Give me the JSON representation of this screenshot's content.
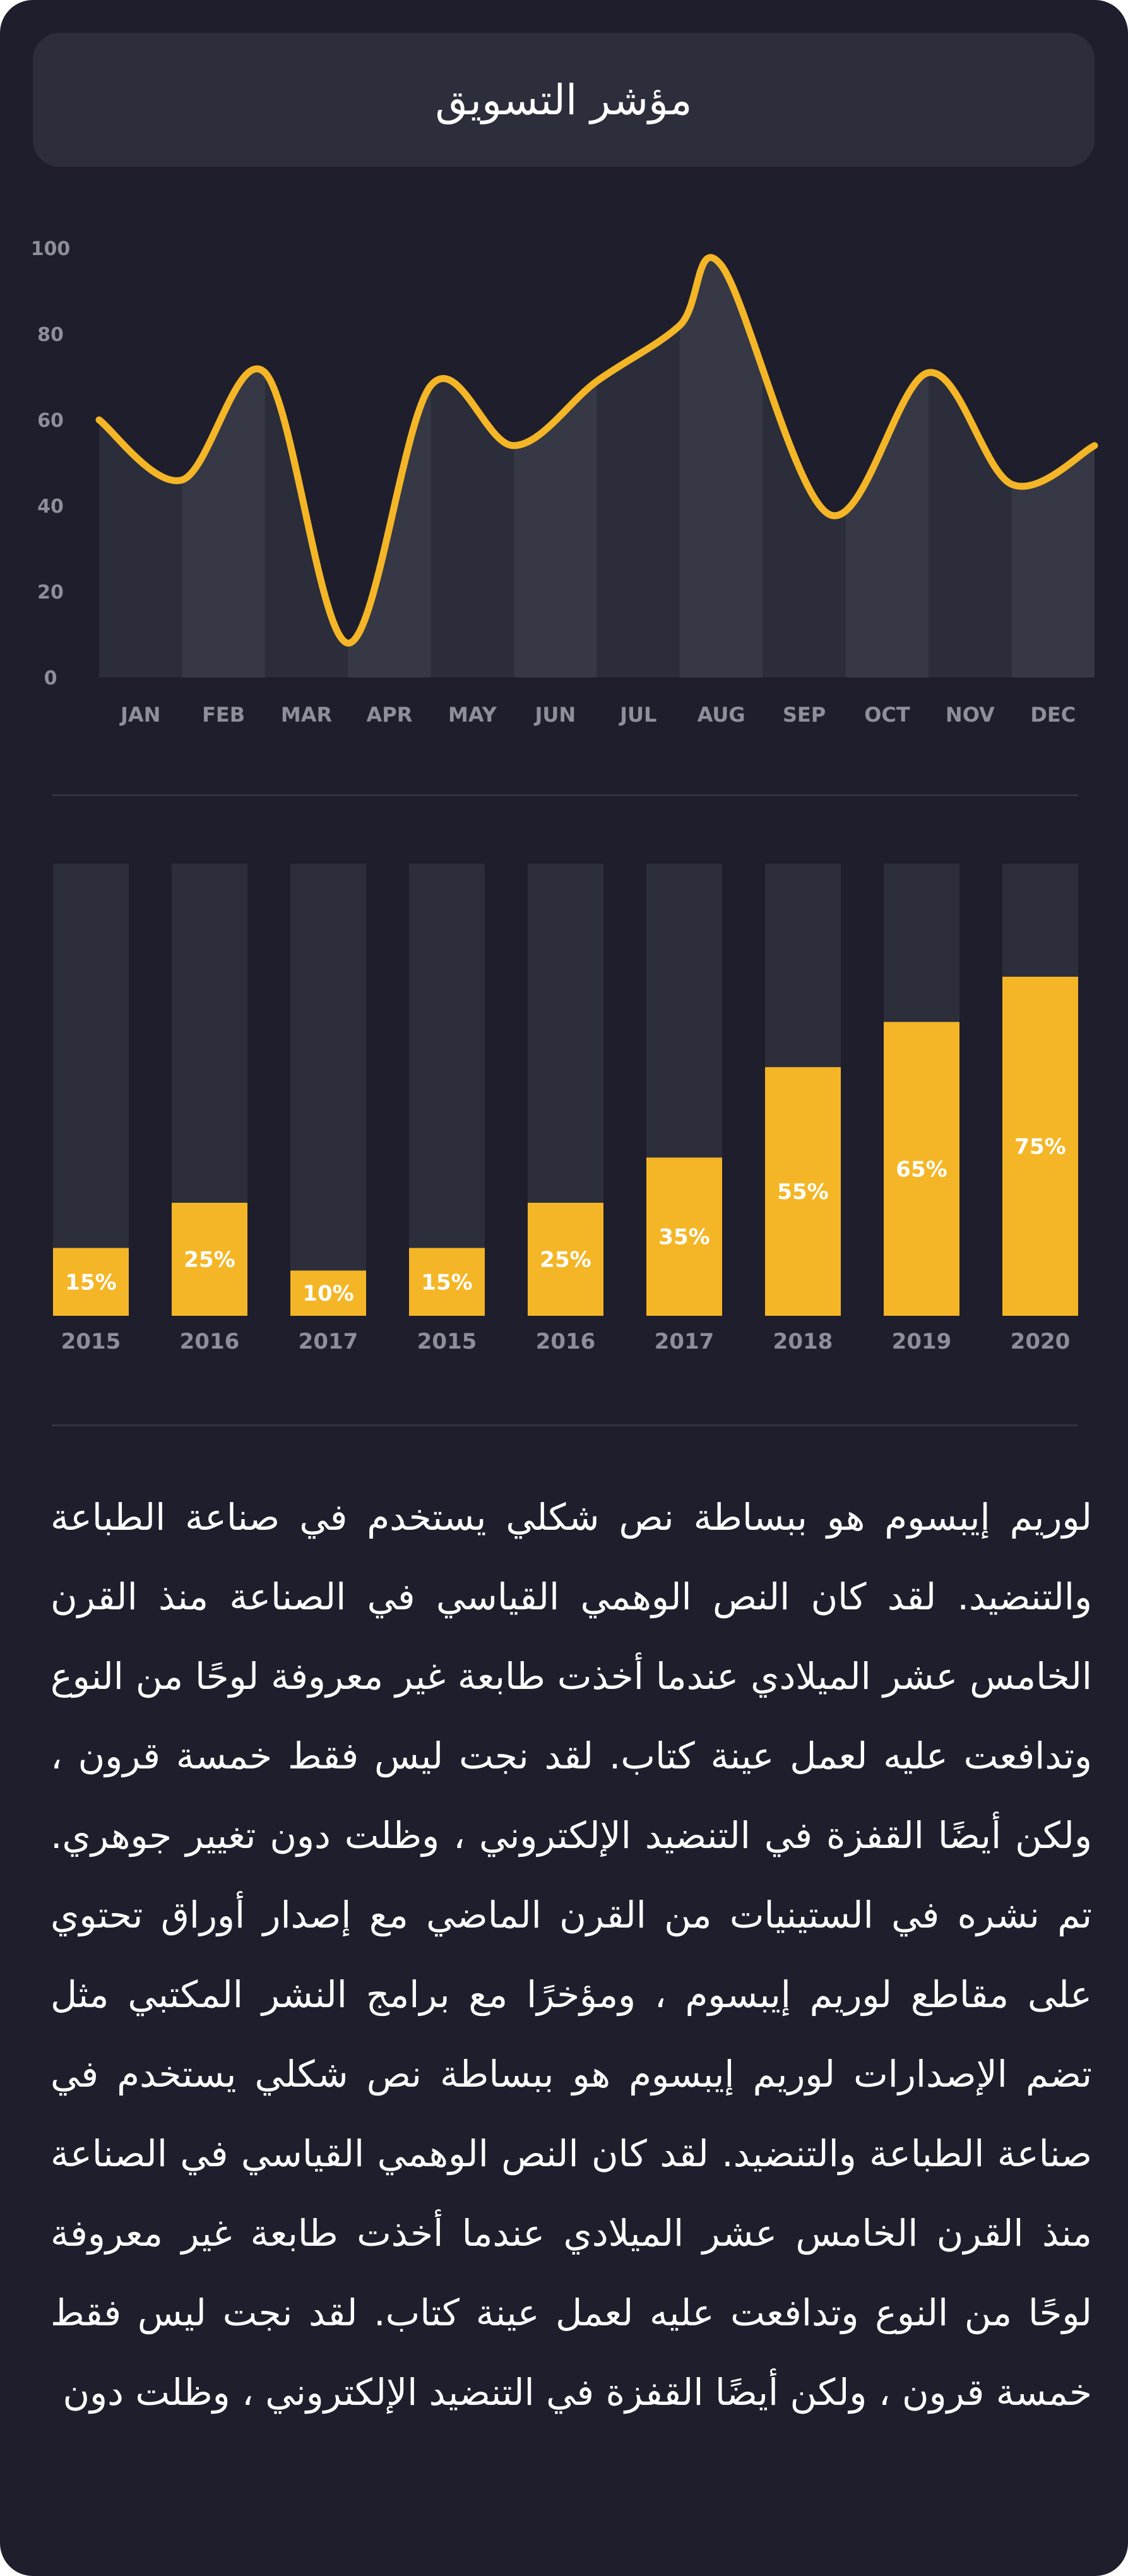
{
  "title": "مؤشر التسويق",
  "colors": {
    "background": "#1f1e2c",
    "panel": "#2c2e3c",
    "accent": "#f4b626",
    "column_a": "#2b2d3a",
    "column_b": "#363845",
    "track": "#2c2e3c",
    "tick": "#8d8f9a",
    "divider": "#33343f"
  },
  "chart_data": [
    {
      "type": "line",
      "categories": [
        "JAN",
        "FEB",
        "MAR",
        "APR",
        "MAY",
        "JUN",
        "JUL",
        "AUG",
        "SEP",
        "OCT",
        "NOV",
        "DEC"
      ],
      "yticks": [
        0,
        20,
        40,
        60,
        80,
        100
      ],
      "ylim": [
        0,
        100
      ],
      "curve": "smooth",
      "area_fill": "alternating column bands",
      "points": [
        {
          "x": 0.0,
          "y": 60
        },
        {
          "x": 1.0,
          "y": 46
        },
        {
          "x": 2.0,
          "y": 71
        },
        {
          "x": 3.0,
          "y": 8
        },
        {
          "x": 4.0,
          "y": 68
        },
        {
          "x": 5.0,
          "y": 54
        },
        {
          "x": 6.0,
          "y": 69
        },
        {
          "x": 7.0,
          "y": 82
        },
        {
          "x": 7.5,
          "y": 96
        },
        {
          "x": 8.8,
          "y": 38
        },
        {
          "x": 10.0,
          "y": 71
        },
        {
          "x": 11.0,
          "y": 45
        },
        {
          "x": 12.0,
          "y": 54
        }
      ]
    },
    {
      "type": "bar",
      "categories": [
        "2015",
        "2016",
        "2017",
        "2015",
        "2016",
        "2017",
        "2018",
        "2019",
        "2020"
      ],
      "values": [
        15,
        25,
        10,
        15,
        25,
        35,
        55,
        65,
        75
      ],
      "labels": [
        "15%",
        "25%",
        "10%",
        "15%",
        "25%",
        "35%",
        "55%",
        "65%",
        "75%"
      ],
      "ylim": [
        0,
        100
      ]
    }
  ],
  "paragraph": "لوريم إيبسوم هو ببساطة نص شكلي يستخدم في صناعة الطباعة والتنضيد. لقد كان النص الوهمي القياسي في الصناعة منذ القرن الخامس عشر الميلادي عندما أخذت طابعة غير معروفة لوحًا من النوع وتدافعت عليه لعمل عينة كتاب. لقد نجت ليس فقط خمسة قرون ، ولكن أيضًا القفزة في التنضيد الإلكتروني ، وظلت دون تغيير جوهري. تم نشره في الستينيات من القرن الماضي مع إصدار أوراق تحتوي على مقاطع لوريم إيبسوم ، ومؤخرًا مع برامج النشر المكتبي مثل تضم الإصدارات لوريم إيبسوم هو ببساطة نص شكلي يستخدم في صناعة الطباعة والتنضيد. لقد كان النص الوهمي القياسي في الصناعة منذ القرن الخامس عشر الميلادي عندما أخذت طابعة غير معروفة لوحًا من النوع وتدافعت عليه لعمل عينة كتاب. لقد نجت ليس فقط خمسة قرون ، ولكن أيضًا القفزة في التنضيد الإلكتروني ، وظلت دون"
}
